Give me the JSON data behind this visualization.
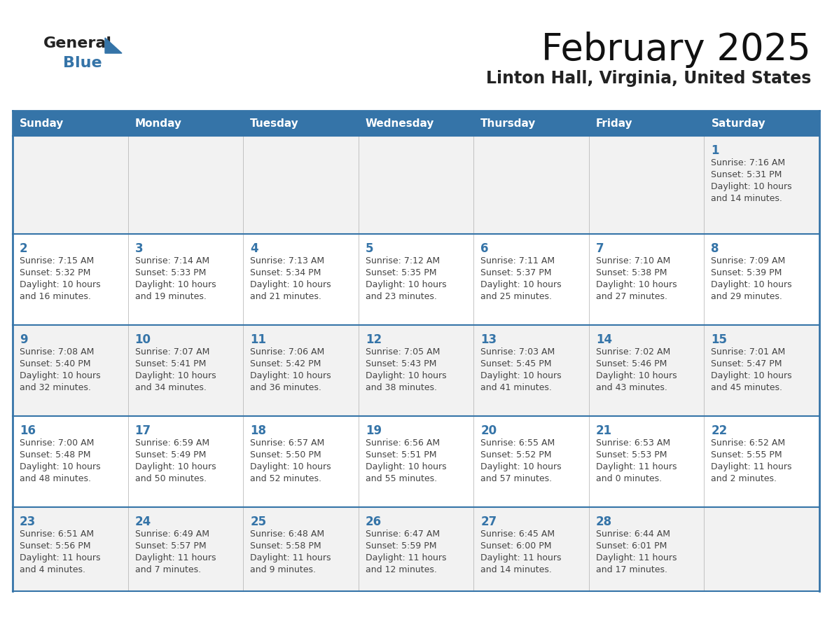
{
  "title": "February 2025",
  "subtitle": "Linton Hall, Virginia, United States",
  "header_bg_color": "#3574a8",
  "header_text_color": "#ffffff",
  "row_bg_colors": [
    "#f2f2f2",
    "#ffffff",
    "#f2f2f2",
    "#ffffff",
    "#f2f2f2"
  ],
  "border_color": "#3574a8",
  "day_number_color": "#3574a8",
  "cell_text_color": "#444444",
  "weekdays": [
    "Sunday",
    "Monday",
    "Tuesday",
    "Wednesday",
    "Thursday",
    "Friday",
    "Saturday"
  ],
  "calendar_data": [
    [
      null,
      null,
      null,
      null,
      null,
      null,
      {
        "day": "1",
        "sunrise": "7:16 AM",
        "sunset": "5:31 PM",
        "daylight": "10 hours",
        "daylight2": "and 14 minutes."
      }
    ],
    [
      {
        "day": "2",
        "sunrise": "7:15 AM",
        "sunset": "5:32 PM",
        "daylight": "10 hours",
        "daylight2": "and 16 minutes."
      },
      {
        "day": "3",
        "sunrise": "7:14 AM",
        "sunset": "5:33 PM",
        "daylight": "10 hours",
        "daylight2": "and 19 minutes."
      },
      {
        "day": "4",
        "sunrise": "7:13 AM",
        "sunset": "5:34 PM",
        "daylight": "10 hours",
        "daylight2": "and 21 minutes."
      },
      {
        "day": "5",
        "sunrise": "7:12 AM",
        "sunset": "5:35 PM",
        "daylight": "10 hours",
        "daylight2": "and 23 minutes."
      },
      {
        "day": "6",
        "sunrise": "7:11 AM",
        "sunset": "5:37 PM",
        "daylight": "10 hours",
        "daylight2": "and 25 minutes."
      },
      {
        "day": "7",
        "sunrise": "7:10 AM",
        "sunset": "5:38 PM",
        "daylight": "10 hours",
        "daylight2": "and 27 minutes."
      },
      {
        "day": "8",
        "sunrise": "7:09 AM",
        "sunset": "5:39 PM",
        "daylight": "10 hours",
        "daylight2": "and 29 minutes."
      }
    ],
    [
      {
        "day": "9",
        "sunrise": "7:08 AM",
        "sunset": "5:40 PM",
        "daylight": "10 hours",
        "daylight2": "and 32 minutes."
      },
      {
        "day": "10",
        "sunrise": "7:07 AM",
        "sunset": "5:41 PM",
        "daylight": "10 hours",
        "daylight2": "and 34 minutes."
      },
      {
        "day": "11",
        "sunrise": "7:06 AM",
        "sunset": "5:42 PM",
        "daylight": "10 hours",
        "daylight2": "and 36 minutes."
      },
      {
        "day": "12",
        "sunrise": "7:05 AM",
        "sunset": "5:43 PM",
        "daylight": "10 hours",
        "daylight2": "and 38 minutes."
      },
      {
        "day": "13",
        "sunrise": "7:03 AM",
        "sunset": "5:45 PM",
        "daylight": "10 hours",
        "daylight2": "and 41 minutes."
      },
      {
        "day": "14",
        "sunrise": "7:02 AM",
        "sunset": "5:46 PM",
        "daylight": "10 hours",
        "daylight2": "and 43 minutes."
      },
      {
        "day": "15",
        "sunrise": "7:01 AM",
        "sunset": "5:47 PM",
        "daylight": "10 hours",
        "daylight2": "and 45 minutes."
      }
    ],
    [
      {
        "day": "16",
        "sunrise": "7:00 AM",
        "sunset": "5:48 PM",
        "daylight": "10 hours",
        "daylight2": "and 48 minutes."
      },
      {
        "day": "17",
        "sunrise": "6:59 AM",
        "sunset": "5:49 PM",
        "daylight": "10 hours",
        "daylight2": "and 50 minutes."
      },
      {
        "day": "18",
        "sunrise": "6:57 AM",
        "sunset": "5:50 PM",
        "daylight": "10 hours",
        "daylight2": "and 52 minutes."
      },
      {
        "day": "19",
        "sunrise": "6:56 AM",
        "sunset": "5:51 PM",
        "daylight": "10 hours",
        "daylight2": "and 55 minutes."
      },
      {
        "day": "20",
        "sunrise": "6:55 AM",
        "sunset": "5:52 PM",
        "daylight": "10 hours",
        "daylight2": "and 57 minutes."
      },
      {
        "day": "21",
        "sunrise": "6:53 AM",
        "sunset": "5:53 PM",
        "daylight": "11 hours",
        "daylight2": "and 0 minutes."
      },
      {
        "day": "22",
        "sunrise": "6:52 AM",
        "sunset": "5:55 PM",
        "daylight": "11 hours",
        "daylight2": "and 2 minutes."
      }
    ],
    [
      {
        "day": "23",
        "sunrise": "6:51 AM",
        "sunset": "5:56 PM",
        "daylight": "11 hours",
        "daylight2": "and 4 minutes."
      },
      {
        "day": "24",
        "sunrise": "6:49 AM",
        "sunset": "5:57 PM",
        "daylight": "11 hours",
        "daylight2": "and 7 minutes."
      },
      {
        "day": "25",
        "sunrise": "6:48 AM",
        "sunset": "5:58 PM",
        "daylight": "11 hours",
        "daylight2": "and 9 minutes."
      },
      {
        "day": "26",
        "sunrise": "6:47 AM",
        "sunset": "5:59 PM",
        "daylight": "11 hours",
        "daylight2": "and 12 minutes."
      },
      {
        "day": "27",
        "sunrise": "6:45 AM",
        "sunset": "6:00 PM",
        "daylight": "11 hours",
        "daylight2": "and 14 minutes."
      },
      {
        "day": "28",
        "sunrise": "6:44 AM",
        "sunset": "6:01 PM",
        "daylight": "11 hours",
        "daylight2": "and 17 minutes."
      },
      null
    ]
  ]
}
